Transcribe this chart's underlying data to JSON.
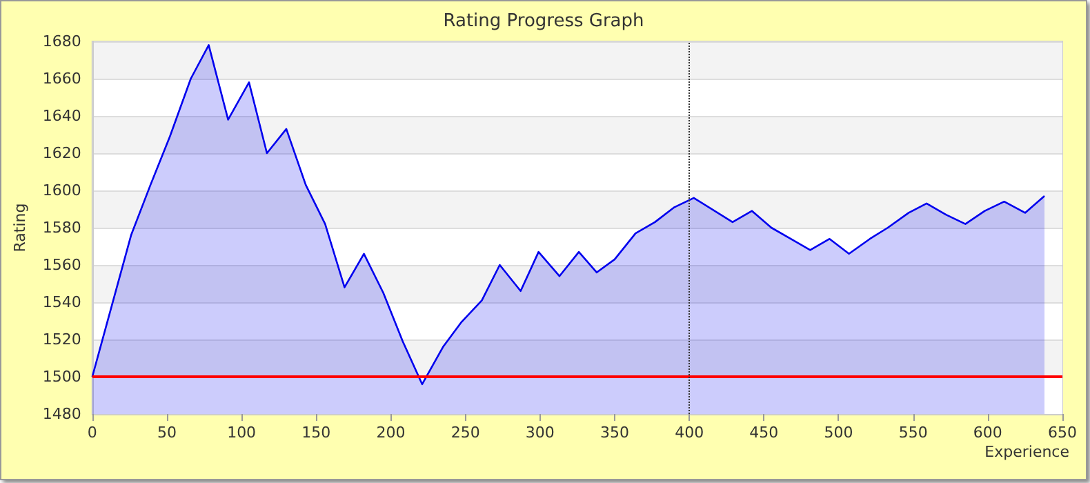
{
  "chart_data": {
    "type": "area",
    "title": "Rating Progress Graph",
    "xlabel": "Experience",
    "ylabel": "Rating",
    "x": [
      0,
      26,
      39,
      52,
      66,
      78,
      91,
      105,
      117,
      130,
      143,
      156,
      169,
      182,
      195,
      208,
      221,
      235,
      247,
      261,
      273,
      287,
      299,
      313,
      326,
      338,
      350,
      364,
      377,
      390,
      403,
      429,
      442,
      455,
      468,
      481,
      494,
      507,
      521,
      533,
      547,
      559,
      572,
      585,
      598,
      611,
      625,
      638
    ],
    "series": [
      {
        "color": "#0000ee",
        "values": [
          1500,
          1576,
          1603,
          1629,
          1660,
          1678,
          1638,
          1658,
          1620,
          1633,
          1603,
          1582,
          1548,
          1566,
          1545,
          1519,
          1496,
          1516,
          1529,
          1541,
          1560,
          1546,
          1567,
          1554,
          1567,
          1556,
          1563,
          1577,
          1583,
          1591,
          1596,
          1583,
          1589,
          1580,
          1574,
          1568,
          1574,
          1566,
          1574,
          1580,
          1588,
          1593,
          1587,
          1582,
          1589,
          1594,
          1588,
          1597
        ]
      }
    ],
    "xlim": [
      0,
      650
    ],
    "xticks": [
      0,
      50,
      100,
      150,
      200,
      250,
      300,
      350,
      400,
      450,
      500,
      550,
      600,
      650
    ],
    "ylim": [
      1480,
      1680
    ],
    "yticks": [
      1480,
      1500,
      1520,
      1540,
      1560,
      1580,
      1600,
      1620,
      1640,
      1660,
      1680
    ],
    "grid": "y",
    "marker": "none",
    "line_style": "solid",
    "ref_lines": [
      {
        "axis": "y",
        "value": 1500,
        "color": "#ff0000",
        "line_style": "solid"
      },
      {
        "axis": "x",
        "value": 400,
        "color": "#333333",
        "line_style": "dotted"
      }
    ]
  }
}
